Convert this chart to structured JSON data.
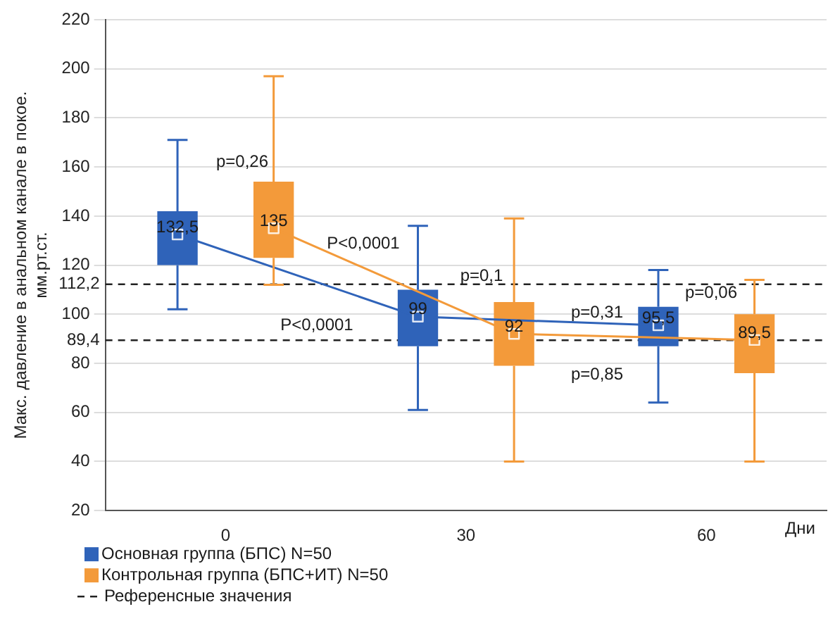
{
  "chart_data": {
    "type": "box",
    "ylabel": "Макс. давление в анальном канале в покое.\nмм.рт.ст.",
    "xlabel": "Дни",
    "categories": [
      "0",
      "30",
      "60"
    ],
    "series": [
      {
        "name": "Основная группа (БПС) N=50",
        "color": "#2f63b9",
        "value_labels": [
          "132,5",
          "99",
          "95,5"
        ],
        "boxes": [
          {
            "low": 102,
            "q1": 120,
            "median": 132.5,
            "q3": 142,
            "high": 171
          },
          {
            "low": 61,
            "q1": 87,
            "median": 99,
            "q3": 110,
            "high": 136
          },
          {
            "low": 64,
            "q1": 87,
            "median": 95.5,
            "q3": 103,
            "high": 118
          }
        ]
      },
      {
        "name": "Контрольная группа (БПС+ИТ) N=50",
        "color": "#f39a3a",
        "value_labels": [
          "135",
          "92",
          "89,5"
        ],
        "boxes": [
          {
            "low": 112,
            "q1": 123,
            "median": 135,
            "q3": 154,
            "high": 197
          },
          {
            "low": 40,
            "q1": 79,
            "median": 92,
            "q3": 105,
            "high": 139
          },
          {
            "low": 40,
            "q1": 76,
            "median": 89.5,
            "q3": 100,
            "high": 114
          }
        ]
      }
    ],
    "ylim": [
      20,
      220
    ],
    "yticks": [
      20,
      40,
      60,
      80,
      100,
      120,
      140,
      160,
      180,
      200,
      220
    ],
    "ref_lines": [
      {
        "axis": "y",
        "value": 112.2,
        "label": "112,2",
        "color": "#222222",
        "line_style": "dashed"
      },
      {
        "axis": "y",
        "value": 89.4,
        "label": "89,4",
        "color": "#222222",
        "line_style": "dashed"
      }
    ],
    "annotations": [
      "p=0,26",
      "P<0,0001",
      "P<0,0001",
      "p=0,1",
      "p=0,31",
      "p=0,85",
      "p=0,06",
      "Референсные значения"
    ],
    "grid": "y",
    "legend": "bottom left",
    "marker": "square",
    "line_style": "solid"
  }
}
